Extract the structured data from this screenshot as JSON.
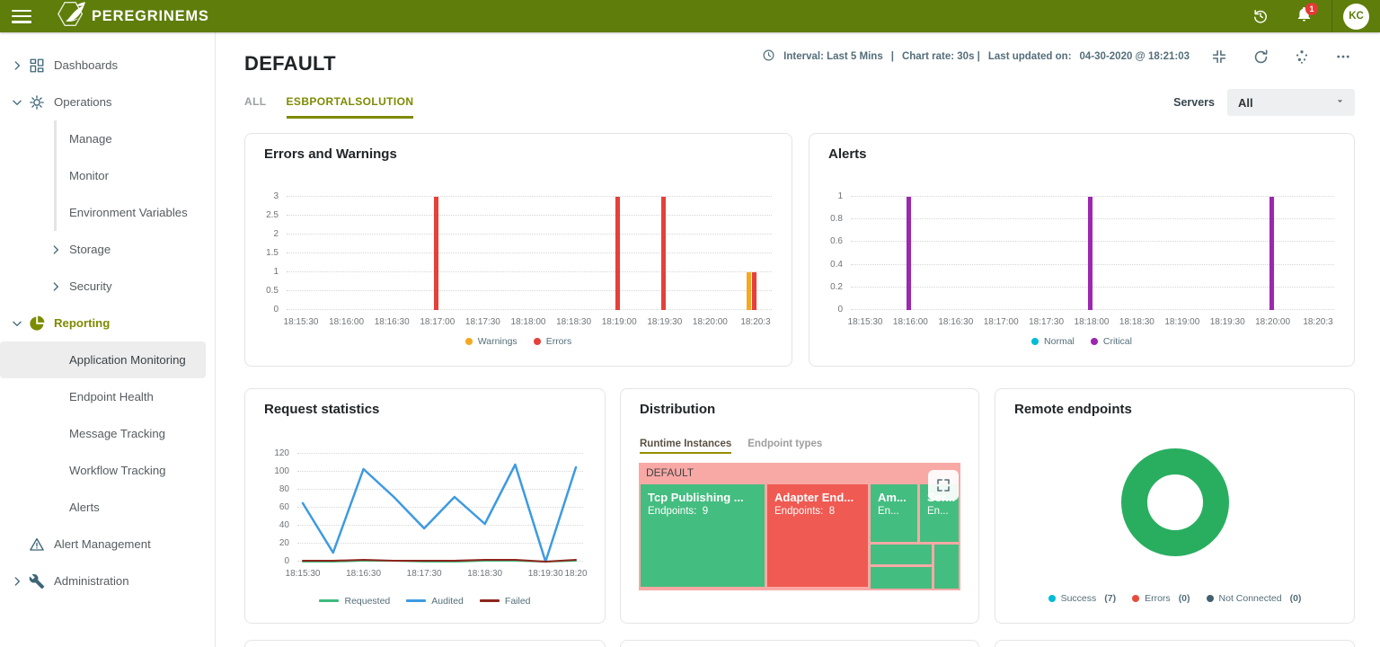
{
  "header": {
    "brand": "PEREGRINEMS",
    "notification_count": "1",
    "avatar_initials": "KC",
    "colors": {
      "bar_bg": "#5e7d0b",
      "badge": "#e53935"
    },
    "icons": {
      "menu": "hamburger",
      "logo": "falcon-hexagon",
      "history": "clock-back-arrow",
      "notifications": "bell",
      "account": "avatar-initials"
    }
  },
  "sidebar": {
    "items": [
      {
        "label": "Dashboards",
        "level": 0,
        "icon": "dashboard",
        "chevron": "right"
      },
      {
        "label": "Operations",
        "level": 0,
        "icon": "gear",
        "chevron": "down"
      },
      {
        "label": "Manage",
        "level": 1,
        "line": true
      },
      {
        "label": "Monitor",
        "level": 1,
        "line": true
      },
      {
        "label": "Environment Variables",
        "level": 1,
        "line": true
      },
      {
        "label": "Storage",
        "level": 1,
        "chevron": "right"
      },
      {
        "label": "Security",
        "level": 1,
        "chevron": "right"
      },
      {
        "label": "Reporting",
        "level": 0,
        "icon": "pie",
        "chevron": "down",
        "accent": true
      },
      {
        "label": "Application Monitoring",
        "level": 1,
        "selected": true
      },
      {
        "label": "Endpoint Health",
        "level": 1
      },
      {
        "label": "Message Tracking",
        "level": 1
      },
      {
        "label": "Workflow Tracking",
        "level": 1
      },
      {
        "label": "Alerts",
        "level": 1
      },
      {
        "label": "Alert Management",
        "level": 0,
        "icon": "warning"
      },
      {
        "label": "Administration",
        "level": 0,
        "icon": "wrench",
        "chevron": "right"
      }
    ]
  },
  "page": {
    "title": "DEFAULT",
    "interval_label": "Interval: Last 5 Mins",
    "sep1": "|",
    "chart_rate_label": "Chart rate: 30s |",
    "updated_label": "Last updated on:",
    "updated_value": "04-30-2020 @ 18:21:03",
    "toolbar_icons": {
      "collapse": "fullscreen-exit",
      "refresh": "circular-arrow",
      "services": "dot-cluster",
      "more": "ellipsis"
    },
    "tabs": [
      {
        "label": "ALL",
        "active": false
      },
      {
        "label": "ESBPORTALSOLUTION",
        "active": true
      }
    ],
    "servers_label": "Servers",
    "servers_value": "All",
    "accent_color": "#7d8b00"
  },
  "chart_data": [
    {
      "id": "errors_warnings",
      "type": "bar",
      "title": "Errors and Warnings",
      "categories": [
        "18:15:30",
        "18:16:00",
        "18:16:30",
        "18:17:00",
        "18:17:30",
        "18:18:00",
        "18:18:30",
        "18:19:00",
        "18:19:30",
        "18:20:00",
        "18:20:3"
      ],
      "yticks": [
        0,
        0.5,
        1,
        1.5,
        2,
        2.5,
        3
      ],
      "ylim": [
        0,
        3
      ],
      "grid": "dotted",
      "legend_position": "bottom",
      "series": [
        {
          "name": "Warnings",
          "color": "#f6a821",
          "points": [
            {
              "i": 10,
              "v": 1
            }
          ]
        },
        {
          "name": "Errors",
          "color": "#e5403a",
          "points": [
            {
              "i": 3,
              "v": 3
            },
            {
              "i": 7,
              "v": 3
            },
            {
              "i": 8,
              "v": 3
            },
            {
              "i": 10,
              "v": 1
            }
          ]
        }
      ]
    },
    {
      "id": "alerts",
      "type": "bar",
      "title": "Alerts",
      "categories": [
        "18:15:30",
        "18:16:00",
        "18:16:30",
        "18:17:00",
        "18:17:30",
        "18:18:00",
        "18:18:30",
        "18:19:00",
        "18:19:30",
        "18:20:00",
        "18:20:3"
      ],
      "yticks": [
        0,
        0.2,
        0.4,
        0.6,
        0.8,
        1
      ],
      "ylim": [
        0,
        1
      ],
      "grid": "dotted",
      "legend_position": "bottom",
      "series": [
        {
          "name": "Normal",
          "color": "#00bcd4",
          "points": []
        },
        {
          "name": "Critical",
          "color": "#9c27b0",
          "points": [
            {
              "i": 1,
              "v": 1
            },
            {
              "i": 5,
              "v": 1
            },
            {
              "i": 9,
              "v": 1
            }
          ]
        }
      ]
    },
    {
      "id": "request_statistics",
      "type": "line",
      "title": "Request statistics",
      "x_tick_labels": [
        "18:15:30",
        "18:16:30",
        "18:17:30",
        "18:18:30",
        "18:19:30",
        "18:20"
      ],
      "x_tick_indices": [
        0,
        2,
        4,
        6,
        8,
        9
      ],
      "yticks": [
        0,
        20,
        40,
        60,
        80,
        100,
        120
      ],
      "ylim": [
        0,
        120
      ],
      "grid": "dotted",
      "legend_position": "bottom",
      "series": [
        {
          "name": "Requested",
          "color": "#3cba7c",
          "values": [
            0,
            0,
            1,
            1,
            0,
            0,
            1,
            1,
            0,
            1
          ]
        },
        {
          "name": "Audited",
          "color": "#3d9ae1",
          "values": [
            65,
            10,
            103,
            72,
            37,
            72,
            42,
            108,
            0,
            105
          ]
        },
        {
          "name": "Failed",
          "color": "#8d241c",
          "values": [
            1,
            1,
            2,
            1,
            1,
            1,
            2,
            2,
            0,
            2
          ]
        }
      ]
    },
    {
      "id": "distribution",
      "type": "treemap",
      "title": "Distribution",
      "tabs": [
        {
          "label": "Runtime Instances",
          "active": true
        },
        {
          "label": "Endpoint types",
          "active": false
        }
      ],
      "group_label": "DEFAULT",
      "group_bg": "#f8a9a6",
      "cells": [
        {
          "label": "Tcp Publishing ...",
          "sub": "Endpoints:  9",
          "color": "#44bd80"
        },
        {
          "label": "Adapter End...",
          "sub": "Endpoints:  8",
          "color": "#ef5a52"
        },
        {
          "label": "Am...",
          "sub": "En...",
          "color": "#44bd80"
        },
        {
          "label": "Ser...",
          "sub": "En...",
          "color": "#44bd80"
        },
        {
          "label": "",
          "sub": "",
          "color": "#44bd80"
        },
        {
          "label": "",
          "sub": "",
          "color": "#44bd80"
        },
        {
          "label": "",
          "sub": "",
          "color": "#44bd80"
        }
      ],
      "expand_icon": "fullscreen-corners"
    },
    {
      "id": "remote_endpoints",
      "type": "donut",
      "title": "Remote endpoints",
      "ring_color": "#29ae60",
      "slices": [
        {
          "name": "Success",
          "count": 7,
          "color": "#00bcd4"
        },
        {
          "name": "Errors",
          "count": 0,
          "color": "#e84c3d"
        },
        {
          "name": "Not Connected",
          "count": 0,
          "color": "#44606e"
        }
      ]
    }
  ]
}
